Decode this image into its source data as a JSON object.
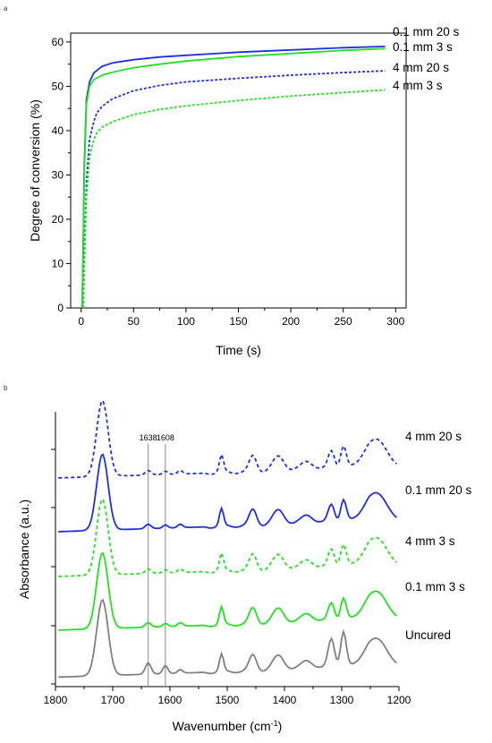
{
  "chart_data": [
    {
      "panel": "a",
      "type": "line",
      "xlabel": "Time (s)",
      "ylabel": "Degree of conversion (%)",
      "xlim": [
        -10,
        310
      ],
      "ylim": [
        0,
        62
      ],
      "xticks": [
        "0",
        "50",
        "100",
        "150",
        "200",
        "250",
        "300"
      ],
      "yticks": [
        "0",
        "10",
        "20",
        "30",
        "40",
        "50",
        "60"
      ],
      "series": [
        {
          "name": "0.1 mm 20 s",
          "color": "#1f2fe0",
          "dash": "solid",
          "x": [
            1,
            2,
            3,
            5,
            8,
            12,
            20,
            30,
            50,
            75,
            100,
            150,
            200,
            250,
            290
          ],
          "y": [
            0,
            15,
            32,
            47,
            51,
            53,
            54.5,
            55.3,
            56.0,
            56.6,
            57.0,
            57.7,
            58.2,
            58.7,
            59.0
          ]
        },
        {
          "name": "0.1 mm 3 s",
          "color": "#22e022",
          "dash": "solid",
          "x": [
            1,
            2,
            3,
            5,
            8,
            12,
            20,
            30,
            50,
            75,
            100,
            150,
            200,
            250,
            290
          ],
          "y": [
            0,
            14,
            30,
            46,
            50,
            51.5,
            52.5,
            53.2,
            54.2,
            55.0,
            55.7,
            56.7,
            57.4,
            58.1,
            58.5
          ]
        },
        {
          "name": "4 mm 20 s",
          "color": "#1f2fe0",
          "dash": "dashed",
          "x": [
            2,
            3,
            5,
            8,
            12,
            15,
            20,
            30,
            50,
            75,
            100,
            150,
            200,
            250,
            290
          ],
          "y": [
            0,
            10,
            28,
            38,
            42,
            44,
            45.5,
            47.2,
            49.0,
            50.2,
            51.0,
            51.8,
            52.5,
            53.1,
            53.5
          ]
        },
        {
          "name": "4 mm 3 s",
          "color": "#22e022",
          "dash": "dashed",
          "x": [
            2,
            3,
            5,
            8,
            12,
            15,
            20,
            30,
            50,
            75,
            100,
            150,
            200,
            250,
            290
          ],
          "y": [
            0,
            9,
            25,
            34,
            38,
            39.5,
            40.8,
            42.0,
            43.6,
            44.8,
            45.6,
            46.8,
            47.8,
            48.6,
            49.2
          ]
        }
      ]
    },
    {
      "panel": "b",
      "type": "line",
      "xlabel": "Wavenumber (cm",
      "xlabel_sup": "-1",
      "xlabel_tail": ")",
      "ylabel": "Absorbance (a.u.)",
      "xlim": [
        1800,
        1200
      ],
      "xticks": [
        "1800",
        "1700",
        "1600",
        "1500",
        "1400",
        "1300",
        "1200"
      ],
      "reference_lines": [
        "1638",
        "1608"
      ],
      "series": [
        {
          "name": "4 mm 20 s",
          "color": "#1f2fe0",
          "dash": "dashed",
          "offset": 4.55
        },
        {
          "name": "0.1 mm 20 s",
          "color": "#1f2fe0",
          "dash": "solid",
          "offset": 3.35
        },
        {
          "name": "4 mm 3 s",
          "color": "#22e022",
          "dash": "dashed",
          "offset": 2.35
        },
        {
          "name": "0.1 mm 3 s",
          "color": "#22e022",
          "dash": "solid",
          "offset": 1.15
        },
        {
          "name": "Uncured",
          "color": "#808080",
          "dash": "solid",
          "offset": 0.1
        }
      ]
    }
  ],
  "labels": {
    "panel_a": "a",
    "panel_b": "b"
  }
}
